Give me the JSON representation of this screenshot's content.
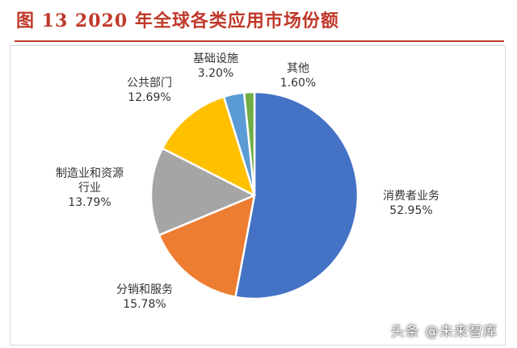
{
  "figure": {
    "title": "图 13 2020 年全球各类应用市场份额"
  },
  "chart_data": {
    "type": "pie",
    "title": "",
    "unit": "%",
    "slices": [
      {
        "category": "消费者业务",
        "value": 52.95,
        "value_label": "52.95%",
        "color": "#4472c4"
      },
      {
        "category": "分销和服务",
        "value": 15.78,
        "value_label": "15.78%",
        "color": "#ed7d31"
      },
      {
        "category": "制造业和资源行业",
        "category_lines": [
          "制造业和资源",
          "行业"
        ],
        "value": 13.79,
        "value_label": "13.79%",
        "color": "#a5a5a5"
      },
      {
        "category": "公共部门",
        "value": 12.69,
        "value_label": "12.69%",
        "color": "#ffc000"
      },
      {
        "category": "基础设施",
        "value": 3.2,
        "value_label": "3.20%",
        "color": "#5b9bd5"
      },
      {
        "category": "其他",
        "value": 1.6,
        "value_label": "1.60%",
        "color": "#70ad47"
      }
    ],
    "legend": "none"
  },
  "watermark": {
    "text": "头条 @未来智库"
  }
}
